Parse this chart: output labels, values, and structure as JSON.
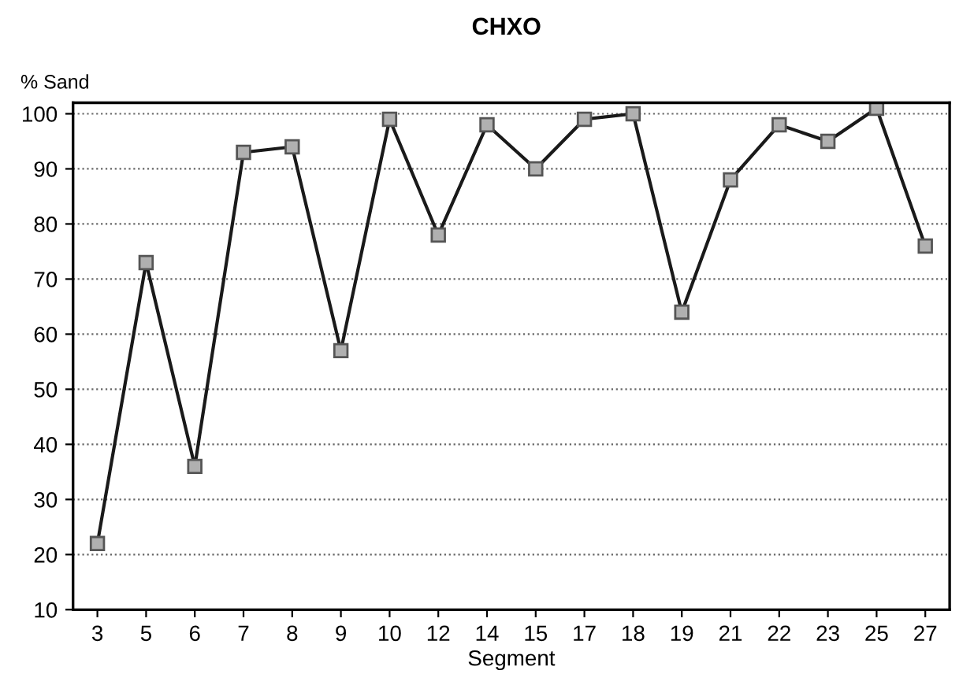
{
  "chart_data": {
    "type": "line",
    "title": "CHXO",
    "ylabel": "% Sand",
    "xlabel": "Segment",
    "categories": [
      "3",
      "5",
      "6",
      "7",
      "8",
      "9",
      "10",
      "12",
      "14",
      "15",
      "17",
      "18",
      "19",
      "21",
      "22",
      "23",
      "25",
      "27"
    ],
    "series": [
      {
        "color": "#1a1a1a",
        "values": [
          22,
          73,
          36,
          93,
          94,
          57,
          99,
          78,
          98,
          90,
          99,
          100,
          64,
          88,
          98,
          95,
          101,
          76
        ]
      }
    ],
    "ylim": [
      10,
      102
    ],
    "yticks": [
      10,
      20,
      30,
      40,
      50,
      60,
      70,
      80,
      90,
      100
    ],
    "grid": "y",
    "legend": false,
    "marker": "square",
    "line_style": "solid"
  }
}
